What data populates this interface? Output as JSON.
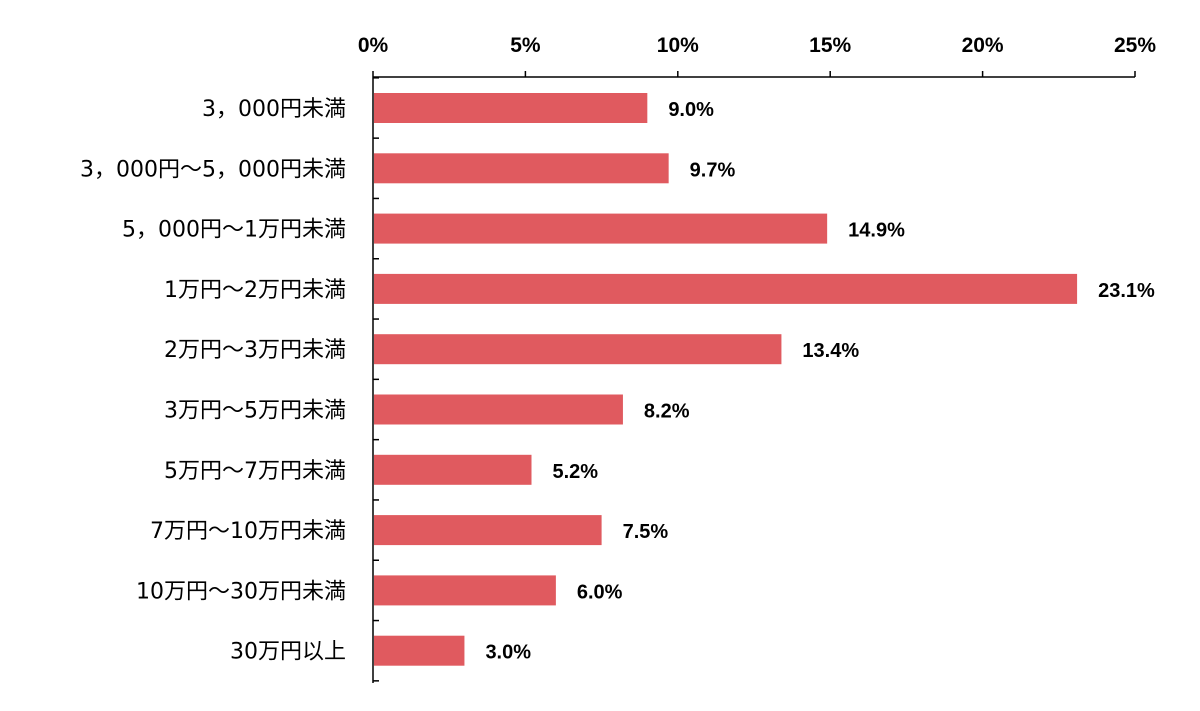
{
  "chart_data": {
    "type": "bar",
    "orientation": "horizontal",
    "title": "",
    "xlabel": "",
    "ylabel": "",
    "xlim": [
      0,
      25
    ],
    "x_ticks": [
      0,
      5,
      10,
      15,
      20,
      25
    ],
    "x_tick_labels": [
      "0%",
      "5%",
      "10%",
      "15%",
      "20%",
      "25%"
    ],
    "x_axis_position": "top",
    "grid": false,
    "legend": "none",
    "bar_color": "#e05a5f",
    "categories": [
      "3，000円未満",
      "3，000円～5，000円未満",
      "5，000円～1万円未満",
      "1万円～2万円未満",
      "2万円～3万円未満",
      "3万円～5万円未満",
      "5万円～7万円未満",
      "7万円～10万円未満",
      "10万円～30万円未満",
      "30万円以上"
    ],
    "values": [
      9.0,
      9.7,
      14.9,
      23.1,
      13.4,
      8.2,
      5.2,
      7.5,
      6.0,
      3.0
    ],
    "data_labels": [
      "9.0%",
      "9.7%",
      "14.9%",
      "23.1%",
      "13.4%",
      "8.2%",
      "5.2%",
      "7.5%",
      "6.0%",
      "3.0%"
    ]
  }
}
